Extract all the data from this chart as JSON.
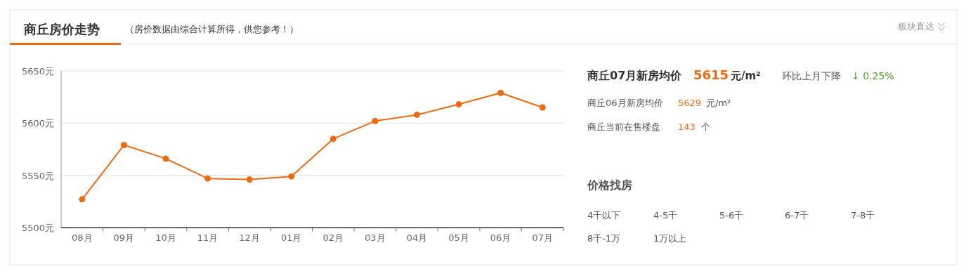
{
  "chart_data": [
    {
      "type": "line",
      "title": "商丘房价走势",
      "subtitle": "（房价数据由综合计算所得，供您参考！）",
      "annotations": [
        "板块直达"
      ],
      "categories": [
        "08月",
        "09月",
        "10月",
        "11月",
        "12月",
        "01月",
        "02月",
        "03月",
        "04月",
        "05月",
        "06月",
        "07月"
      ],
      "series": [
        {
          "color": "#ea6b14",
          "values": [
            5527,
            5579,
            5566,
            5547,
            5546,
            5549,
            5585,
            5602,
            5608,
            5618,
            5629,
            5615
          ]
        }
      ],
      "ylim": [
        5500,
        5650
      ],
      "yticks": [
        {
          "value": 5500,
          "label": "5500元"
        },
        {
          "value": 5550,
          "label": "5550元"
        },
        {
          "value": 5600,
          "label": "5600元"
        },
        {
          "value": 5650,
          "label": "5650元"
        }
      ],
      "grid": "y",
      "marker": "circle",
      "line_style": "solid"
    },
    {
      "type": "other",
      "annotations": [
        "商丘07月新房均价",
        "5615",
        "元/m²",
        "环比上月下降",
        "↓ 0.25%",
        "商丘06月新房均价",
        "5629",
        "元/m²",
        "商丘当前在售楼盘",
        "143",
        "个",
        "价格找房",
        "4千以下",
        "4-5千",
        "5-6千",
        "6-7千",
        "7-8千",
        "8千-1万",
        "1万以上"
      ]
    }
  ]
}
